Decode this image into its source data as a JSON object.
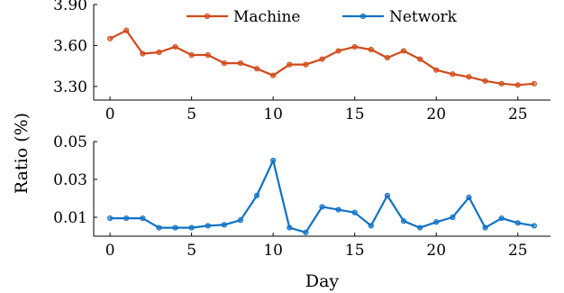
{
  "chart_data": [
    {
      "type": "line",
      "legend": {
        "placement": "top-center",
        "entries": [
          "Machine",
          "Network"
        ]
      },
      "series": [
        {
          "name": "Machine",
          "color": "#d24a1a",
          "x": [
            0,
            1,
            2,
            3,
            4,
            5,
            6,
            7,
            8,
            9,
            10,
            11,
            12,
            13,
            14,
            15,
            16,
            17,
            18,
            19,
            20,
            21,
            22,
            23,
            24,
            25,
            26
          ],
          "values": [
            3.65,
            3.71,
            3.54,
            3.55,
            3.59,
            3.53,
            3.53,
            3.47,
            3.47,
            3.43,
            3.38,
            3.46,
            3.46,
            3.5,
            3.56,
            3.59,
            3.57,
            3.51,
            3.56,
            3.5,
            3.42,
            3.39,
            3.37,
            3.34,
            3.32,
            3.31,
            3.32
          ]
        }
      ],
      "yticks": [
        "3.30",
        "3.60",
        "3.90"
      ],
      "ytick_values": [
        3.3,
        3.6,
        3.9
      ],
      "xticks": [
        "0",
        "5",
        "10",
        "15",
        "20",
        "25"
      ],
      "xtick_values": [
        0,
        5,
        10,
        15,
        20,
        25
      ],
      "xlim": [
        -1,
        27
      ],
      "ylim": [
        3.2,
        3.9
      ],
      "grid": false
    },
    {
      "type": "line",
      "series": [
        {
          "name": "Network",
          "color": "#0f72c6",
          "x": [
            0,
            1,
            2,
            3,
            4,
            5,
            6,
            7,
            8,
            9,
            10,
            11,
            12,
            13,
            14,
            15,
            16,
            17,
            18,
            19,
            20,
            21,
            22,
            23,
            24,
            25,
            26
          ],
          "values": [
            0.0095,
            0.0095,
            0.0095,
            0.0045,
            0.0045,
            0.0045,
            0.0055,
            0.006,
            0.0085,
            0.0215,
            0.04,
            0.0045,
            0.002,
            0.0155,
            0.014,
            0.0125,
            0.0055,
            0.0215,
            0.008,
            0.0045,
            0.0075,
            0.01,
            0.0205,
            0.0045,
            0.0095,
            0.007,
            0.0055
          ]
        }
      ],
      "yticks": [
        "0.01",
        "0.03",
        "0.05"
      ],
      "ytick_values": [
        0.01,
        0.03,
        0.05
      ],
      "xticks": [
        "0",
        "5",
        "10",
        "15",
        "20",
        "25"
      ],
      "xtick_values": [
        0,
        5,
        10,
        15,
        20,
        25
      ],
      "xlabel": "Day",
      "xlim": [
        -1,
        27
      ],
      "ylim": [
        0.0,
        0.05
      ],
      "grid": false
    }
  ],
  "shared_ylabel": "Ratio (%)"
}
